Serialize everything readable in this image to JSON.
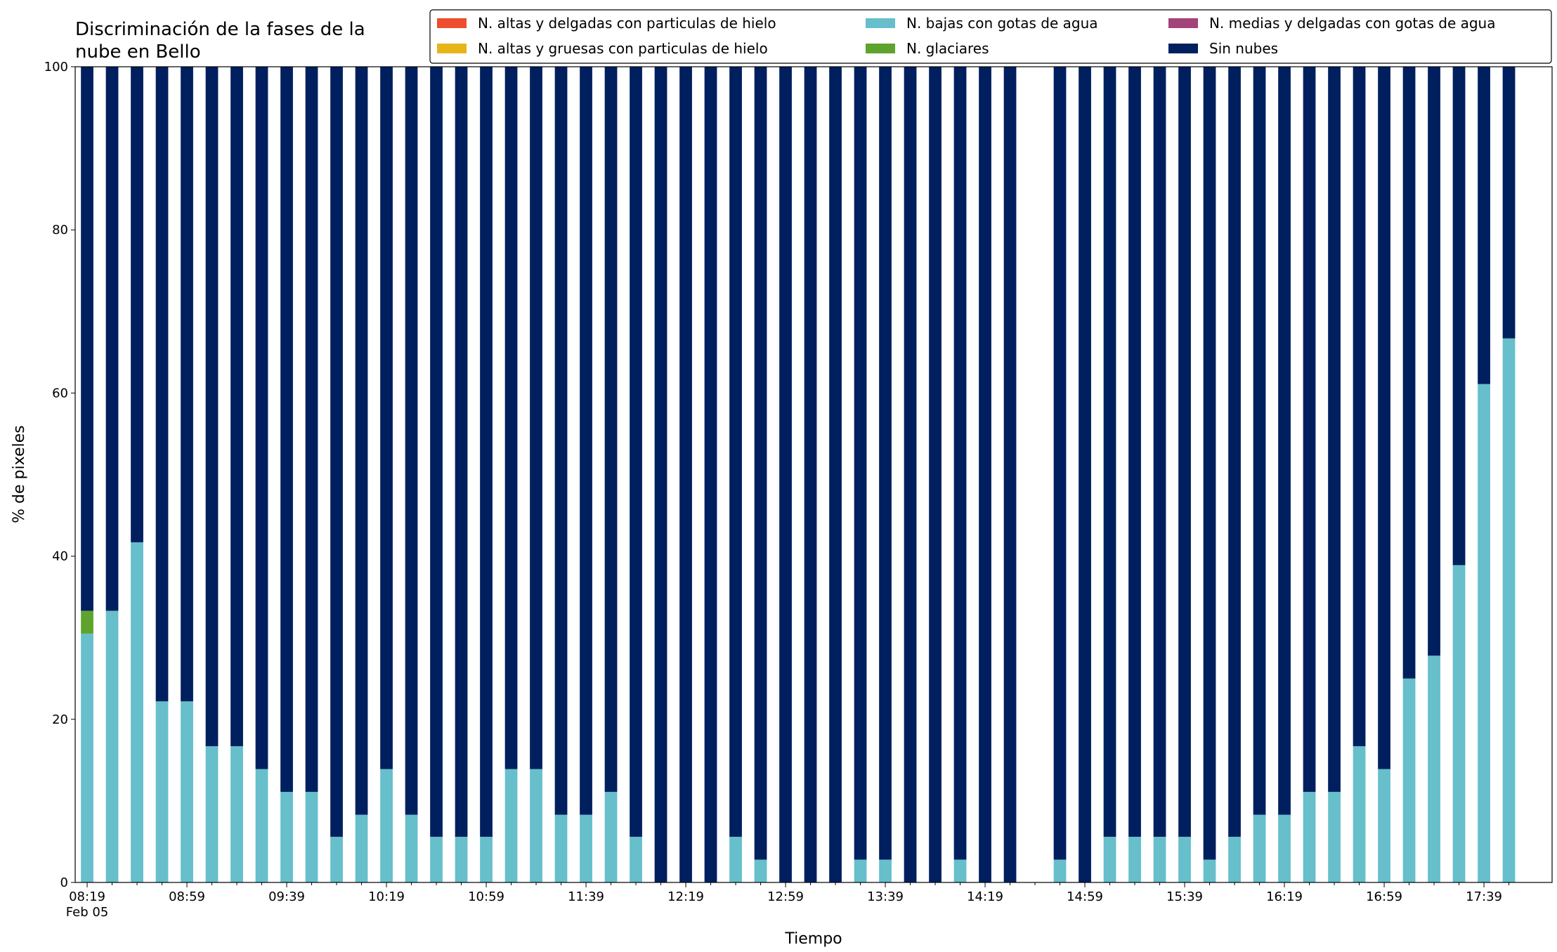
{
  "chart_data": {
    "type": "stacked_bar",
    "title": [
      "Discriminación de la fases de la",
      "nube en Bello"
    ],
    "xlabel": "Tiempo",
    "ylabel": "% de pixeles",
    "x_sublabel": "Feb 05",
    "categories": [
      "08:19",
      null,
      null,
      null,
      "08:59",
      null,
      null,
      null,
      "09:39",
      null,
      null,
      null,
      "10:19",
      null,
      null,
      null,
      "10:59",
      null,
      null,
      null,
      "11:39",
      null,
      null,
      null,
      "12:19",
      null,
      null,
      null,
      "12:59",
      null,
      null,
      null,
      "13:39",
      null,
      null,
      null,
      "14:19",
      null,
      null,
      null,
      "14:59",
      null,
      null,
      null,
      "15:39",
      null,
      null,
      null,
      "16:19",
      null,
      null,
      null,
      "16:59",
      null,
      null,
      null,
      "17:39",
      null
    ],
    "ylim": [
      0,
      100
    ],
    "yticks": [
      0,
      20,
      40,
      60,
      80,
      100
    ],
    "series": [
      {
        "name": "N. altas y delgadas con particulas de hielo",
        "color": "#ee4d2e",
        "values": [
          0,
          0,
          0,
          0,
          0,
          0,
          0,
          0,
          0,
          0,
          0,
          0,
          0,
          0,
          0,
          0,
          0,
          0,
          0,
          0,
          0,
          0,
          0,
          0,
          0,
          0,
          0,
          0,
          0,
          0,
          0,
          0,
          0,
          0,
          0,
          0,
          0,
          0,
          null,
          0,
          0,
          0,
          0,
          0,
          0,
          0,
          0,
          0,
          0,
          0,
          0,
          0,
          0,
          0,
          0,
          0,
          0,
          0
        ]
      },
      {
        "name": "N. altas y gruesas con particulas de hielo",
        "color": "#e6b619",
        "values": [
          0,
          0,
          0,
          0,
          0,
          0,
          0,
          0,
          0,
          0,
          0,
          0,
          0,
          0,
          0,
          0,
          0,
          0,
          0,
          0,
          0,
          0,
          0,
          0,
          0,
          0,
          0,
          0,
          0,
          0,
          0,
          0,
          0,
          0,
          0,
          0,
          0,
          0,
          null,
          0,
          0,
          0,
          0,
          0,
          0,
          0,
          0,
          0,
          0,
          0,
          0,
          0,
          0,
          0,
          0,
          0,
          0,
          0
        ]
      },
      {
        "name": "N. bajas con gotas de agua",
        "color": "#66bfcb",
        "values": [
          30.5,
          33.3,
          41.7,
          22.2,
          22.2,
          16.7,
          16.7,
          13.9,
          11.1,
          11.1,
          5.6,
          8.3,
          13.9,
          8.3,
          5.6,
          5.6,
          5.6,
          13.9,
          13.9,
          8.3,
          8.3,
          11.1,
          5.6,
          0,
          0,
          0,
          5.6,
          2.8,
          0,
          0,
          0,
          2.8,
          2.8,
          0,
          0,
          2.8,
          0,
          0,
          null,
          2.8,
          0,
          5.6,
          5.6,
          5.6,
          5.6,
          2.8,
          5.6,
          8.3,
          8.3,
          11.1,
          11.1,
          16.7,
          13.9,
          25,
          27.8,
          38.9,
          61.1,
          66.7
        ]
      },
      {
        "name": "N. glaciares",
        "color": "#5ea32e",
        "values": [
          2.8,
          0,
          0,
          0,
          0,
          0,
          0,
          0,
          0,
          0,
          0,
          0,
          0,
          0,
          0,
          0,
          0,
          0,
          0,
          0,
          0,
          0,
          0,
          0,
          0,
          0,
          0,
          0,
          0,
          0,
          0,
          0,
          0,
          0,
          0,
          0,
          0,
          0,
          null,
          0,
          0,
          0,
          0,
          0,
          0,
          0,
          0,
          0,
          0,
          0,
          0,
          0,
          0,
          0,
          0,
          0,
          0,
          0
        ]
      },
      {
        "name": "N. medias y delgadas con gotas de agua",
        "color": "#a3437a",
        "values": [
          0,
          0,
          0,
          0,
          0,
          0,
          0,
          0,
          0,
          0,
          0,
          0,
          0,
          0,
          0,
          0,
          0,
          0,
          0,
          0,
          0,
          0,
          0,
          0,
          0,
          0,
          0,
          0,
          0,
          0,
          0,
          0,
          0,
          0,
          0,
          0,
          0,
          0,
          null,
          0,
          0,
          0,
          0,
          0,
          0,
          0,
          0,
          0,
          0,
          0,
          0,
          0,
          0,
          0,
          0,
          0,
          0,
          0
        ]
      },
      {
        "name": "Sin nubes",
        "color": "#001f5f",
        "values": [
          66.7,
          66.7,
          58.3,
          77.8,
          77.8,
          83.3,
          83.3,
          86.1,
          88.9,
          88.9,
          94.4,
          91.7,
          86.1,
          91.7,
          94.4,
          94.4,
          94.4,
          86.1,
          86.1,
          91.7,
          91.7,
          88.9,
          94.4,
          100,
          100,
          100,
          94.4,
          97.2,
          100,
          100,
          100,
          97.2,
          97.2,
          100,
          100,
          97.2,
          100,
          100,
          null,
          97.2,
          100,
          94.4,
          94.4,
          94.4,
          94.4,
          97.2,
          94.4,
          91.7,
          91.7,
          88.9,
          88.9,
          83.3,
          86.1,
          75,
          72.2,
          61.1,
          38.9,
          33.3
        ]
      }
    ]
  }
}
